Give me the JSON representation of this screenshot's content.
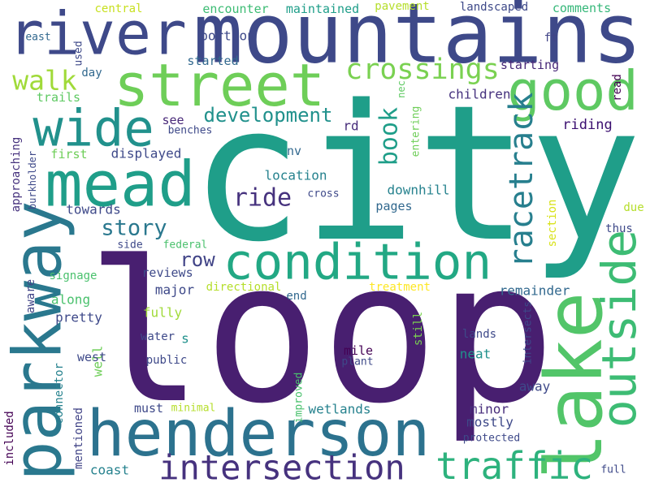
{
  "words": [
    "river",
    "mountains",
    "city",
    "loop",
    "street",
    "good",
    "wide",
    "mead",
    "parkway",
    "henderson",
    "condition",
    "lake",
    "outside",
    "crossings",
    "walk",
    "development",
    "book",
    "racetrack",
    "ride",
    "story",
    "row",
    "intersection",
    "traffic",
    "riding",
    "children",
    "central",
    "encounter",
    "maintained",
    "pavement",
    "landscaped",
    "comments",
    "used",
    "east",
    "portion",
    "ft",
    "started",
    "starting",
    "nec",
    "day",
    "read",
    "trails",
    "entering",
    "rd",
    "see",
    "benches",
    "approaching",
    "burkholder",
    "first",
    "displayed",
    "nv",
    "location",
    "towards",
    "cross",
    "downhill",
    "pages",
    "section",
    "due",
    "thus",
    "side",
    "federal",
    "signage",
    "reviews",
    "major",
    "directional",
    "treatment",
    "end",
    "remainder",
    "aware",
    "along",
    "pretty",
    "fully",
    "intersects",
    "still",
    "lands",
    "water",
    "s",
    "mile",
    "neat",
    "plant",
    "public",
    "well",
    "connector",
    "west",
    "mentioned",
    "included",
    "improved",
    "away",
    "must",
    "minimal",
    "wetlands",
    "minor",
    "mostly",
    "protected",
    "coast",
    "full"
  ]
}
